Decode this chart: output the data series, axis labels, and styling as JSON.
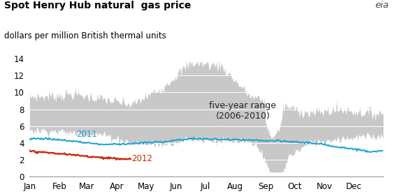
{
  "title": "Spot Henry Hub natural  gas price",
  "subtitle": "dollars per million British thermal units",
  "xlim": [
    0,
    364
  ],
  "ylim": [
    0,
    14
  ],
  "yticks": [
    0,
    2,
    4,
    6,
    8,
    10,
    12,
    14
  ],
  "month_labels": [
    "Jan",
    "Feb",
    "Mar",
    "Apr",
    "May",
    "Jun",
    "Jul",
    "Aug",
    "Sep",
    "Oct",
    "Nov",
    "Dec"
  ],
  "month_positions": [
    0,
    31,
    59,
    90,
    120,
    151,
    181,
    212,
    243,
    273,
    304,
    334
  ],
  "range_color": "#c8c8c8",
  "line_2011_color": "#1a9fd4",
  "line_2012_color": "#cc2200",
  "range_label": "five-year range\n(2006-2010)",
  "label_2011": "2011",
  "label_2012": "2012",
  "title_fontsize": 10,
  "subtitle_fontsize": 8.5,
  "label_fontsize": 8.5,
  "tick_fontsize": 8.5,
  "range_label_fontsize": 9,
  "upper_key": [
    9.5,
    9.8,
    9.2,
    8.5,
    10.5,
    13.5,
    13.2,
    9.5,
    8.5,
    7.5,
    8.0,
    7.5
  ],
  "lower_key": [
    5.5,
    5.2,
    5.0,
    4.0,
    3.8,
    4.5,
    4.2,
    4.0,
    1.8,
    4.0,
    4.5,
    4.8
  ],
  "y2011_key": [
    4.5,
    4.2,
    3.8,
    3.9,
    4.1,
    4.5,
    4.4,
    4.3,
    4.2,
    4.0,
    3.5,
    3.0
  ],
  "y2012_key": [
    3.0,
    2.7,
    2.4,
    2.1,
    2.05
  ],
  "days_2012_end": 105
}
